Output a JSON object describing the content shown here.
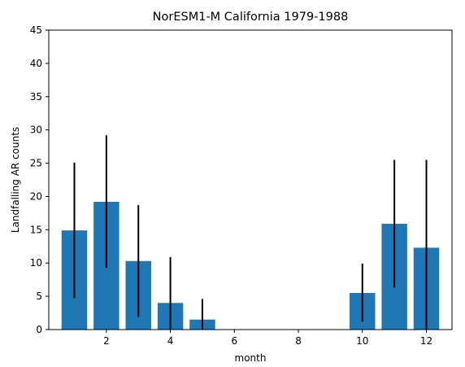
{
  "chart_data": {
    "type": "bar",
    "title": "NorESM1-M California 1979-1988",
    "xlabel": "month",
    "ylabel": "Landfalling AR counts",
    "xlim": [
      0.2,
      12.8
    ],
    "ylim": [
      0,
      45
    ],
    "x_ticks": [
      2,
      4,
      6,
      8,
      10,
      12
    ],
    "y_ticks": [
      0,
      5,
      10,
      15,
      20,
      25,
      30,
      35,
      40,
      45
    ],
    "grid": false,
    "legend": "none",
    "bar_color": "#1f77b4",
    "error_color": "#000000",
    "series": [
      {
        "x": [
          1,
          2,
          3,
          4,
          5,
          6,
          7,
          8,
          9,
          10,
          11,
          12
        ],
        "values": [
          14.9,
          19.2,
          10.3,
          4.0,
          1.5,
          0,
          0,
          0,
          0,
          5.5,
          15.9,
          12.3
        ],
        "error_low": [
          4.7,
          9.3,
          1.9,
          0,
          0,
          0,
          0,
          0,
          0,
          1.2,
          6.3,
          0
        ],
        "error_high": [
          25.1,
          29.2,
          18.7,
          10.9,
          4.6,
          0,
          0,
          0,
          0,
          9.9,
          25.5,
          25.5
        ]
      }
    ]
  }
}
